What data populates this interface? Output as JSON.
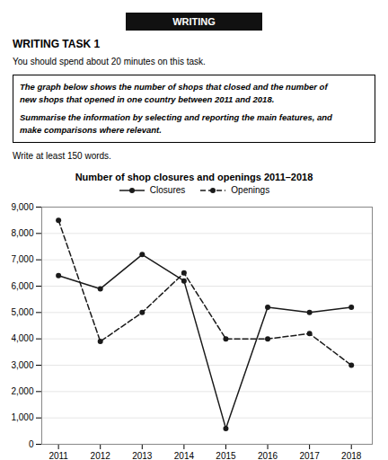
{
  "chart_data": {
    "type": "line",
    "title": "Number of shop closures and openings 2011–2018",
    "annotations": [
      "WRITING",
      "WRITING TASK 1",
      "You should spend about 20 minutes on this task.",
      "The graph below shows the number of shops that closed and the number of",
      "new shops that opened in one country between 2011 and 2018.",
      "Summarise the information by selecting and reporting the main features, and",
      "make comparisons where relevant.",
      "Write at least 150 words."
    ],
    "x": [
      2011,
      2012,
      2013,
      2014,
      2015,
      2016,
      2017,
      2018
    ],
    "series": [
      {
        "name": "Closures",
        "color": "#1a1a1a",
        "marker": "circle",
        "line_style": "solid",
        "values": [
          6400,
          5900,
          7200,
          6200,
          600,
          5200,
          5000,
          5200
        ]
      },
      {
        "name": "Openings",
        "color": "#1a1a1a",
        "marker": "circle",
        "line_style": "dashed",
        "values": [
          8500,
          3900,
          5000,
          6500,
          4000,
          4000,
          4200,
          3000
        ]
      }
    ],
    "xlim": [
      2010.6,
      2018.5
    ],
    "xticks": [
      2011,
      2012,
      2013,
      2014,
      2015,
      2016,
      2017,
      2018
    ],
    "ylim": [
      0,
      9000
    ],
    "yticks": [
      0,
      {
        "value": 1000,
        "label": "1,000"
      },
      {
        "value": 2000,
        "label": "2,000"
      },
      {
        "value": 3000,
        "label": "3,000"
      },
      {
        "value": 4000,
        "label": "4,000"
      },
      {
        "value": 5000,
        "label": "5,000"
      },
      {
        "value": 6000,
        "label": "6,000"
      },
      {
        "value": 7000,
        "label": "7,000"
      },
      {
        "value": 8000,
        "label": "8,000"
      },
      {
        "value": 9000,
        "label": "9,000"
      }
    ],
    "grid": true,
    "legend": "top"
  }
}
